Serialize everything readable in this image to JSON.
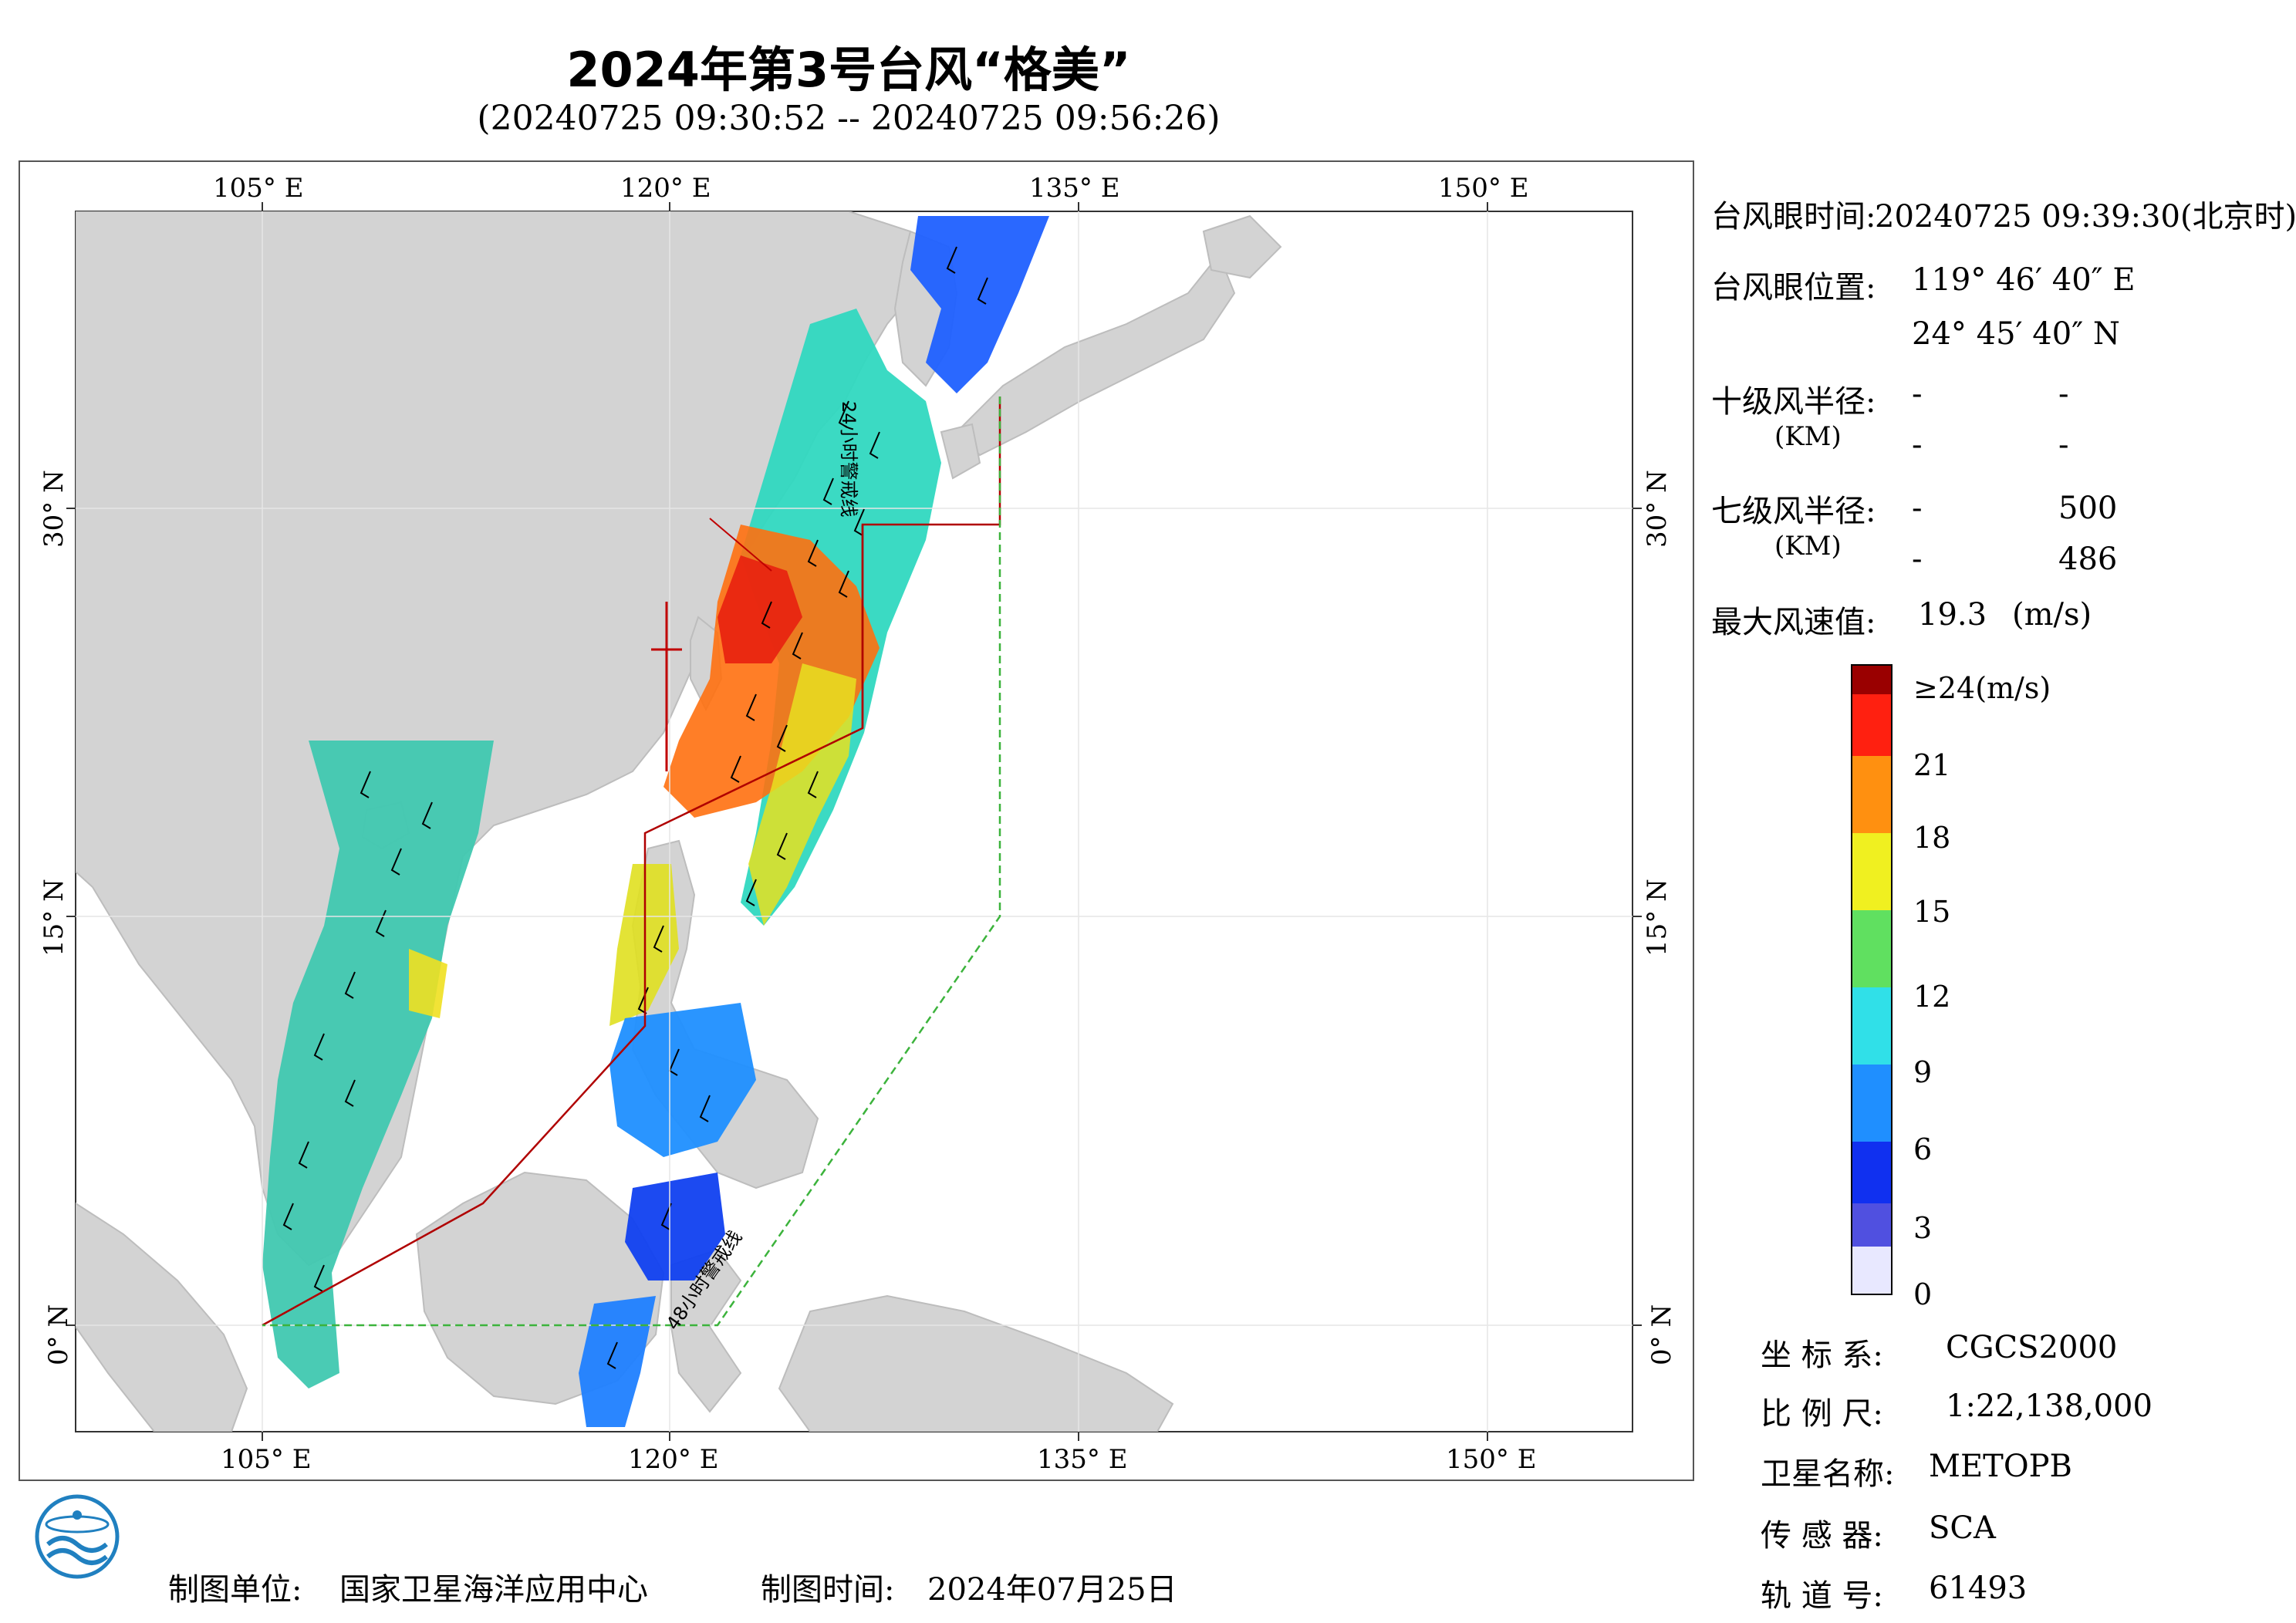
{
  "header": {
    "title": "2024年第3号台风“格美”",
    "subtitle": "(20240725 09:30:52 -- 20240725 09:56:26)"
  },
  "map": {
    "lon_ticks_top": [
      "105° E",
      "120° E",
      "135° E",
      "150° E"
    ],
    "lon_ticks_bottom": [
      "105° E",
      "120° E",
      "135° E",
      "150° E"
    ],
    "lat_ticks_left": [
      "30° N",
      "15° N",
      "0° N"
    ],
    "lat_ticks_right": [
      "30° N",
      "15° N",
      "0° N"
    ],
    "line_24h_label": "24小时警戒线",
    "line_48h_label": "48小时警戒线",
    "colors": {
      "land": "#d3d3d3",
      "ocean": "#ffffff",
      "line_24h": "#b00000",
      "line_48h": "#3cb33c",
      "track": "#c00000"
    }
  },
  "info": {
    "eye_time_label": "台风眼时间:",
    "eye_time_value": "20240725 09:39:30(北京时)",
    "eye_pos_label": "台风眼位置:",
    "eye_lon": "119° 46′ 40″ E",
    "eye_lat": "24° 45′ 40″ N",
    "r10_label": "十级风半径:",
    "r10_unit": "(KM)",
    "r10_row1": [
      "-",
      "-"
    ],
    "r10_row2": [
      "-",
      "-"
    ],
    "r7_label": "七级风半径:",
    "r7_unit": "(KM)",
    "r7_row1": [
      "-",
      "500"
    ],
    "r7_row2": [
      "-",
      "486"
    ],
    "max_wind_label": "最大风速值:",
    "max_wind_value": "19.3",
    "max_wind_unit": "(m/s)"
  },
  "colorbar": {
    "top_label": "≥24(m/s)",
    "ticks": [
      "21",
      "18",
      "15",
      "12",
      "9",
      "6",
      "3",
      "0"
    ],
    "colors": [
      "#e8e8ff",
      "#5050e0",
      "#1030f0",
      "#1f8fff",
      "#30e0e8",
      "#60e060",
      "#f0f020",
      "#ff9010",
      "#ff2010",
      "#9a0000"
    ]
  },
  "meta": {
    "crs_label": "坐 标 系:",
    "crs_value": "CGCS2000",
    "scale_label": "比 例 尺:",
    "scale_value": "1:22,138,000",
    "sat_label": "卫星名称:",
    "sat_value": "METOPB",
    "sensor_label": "传 感 器:",
    "sensor_value": "SCA",
    "orbit_label": "轨 道 号:",
    "orbit_value": "61493"
  },
  "footer": {
    "unit_label": "制图单位:",
    "unit_value": "国家卫星海洋应用中心",
    "date_label": "制图时间:",
    "date_value": "2024年07月25日"
  }
}
